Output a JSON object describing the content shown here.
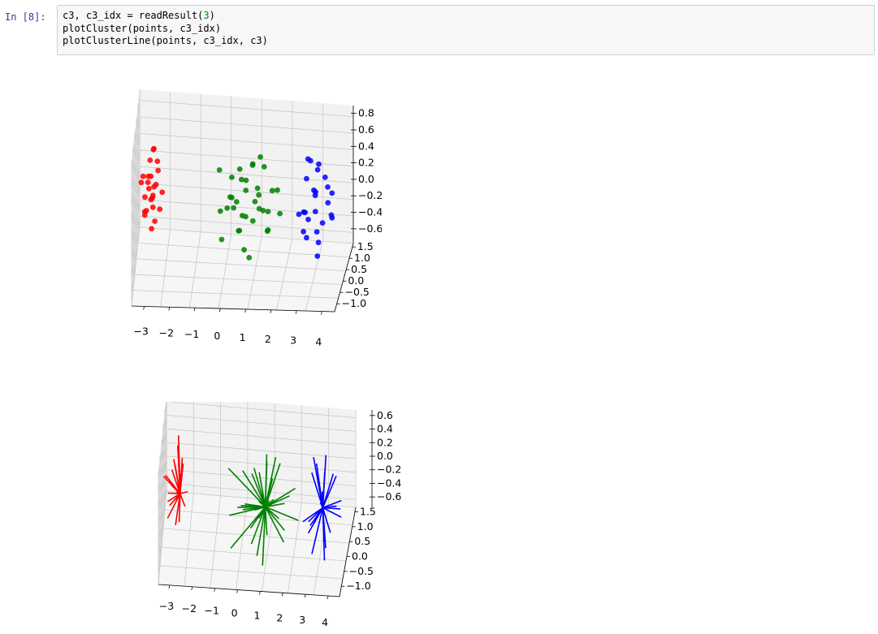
{
  "prompt": "In [8]:",
  "code_lines": [
    [
      "c3, c3_idx = readResult(",
      "3",
      ")"
    ],
    [
      "plotCluster(points, c3_idx)",
      "",
      ""
    ],
    [
      "plotClusterLine(points, c3_idx, c3)",
      "",
      ""
    ]
  ],
  "colors": {
    "cluster1": "#ff0000",
    "cluster2": "#008000",
    "cluster3": "#0000ff"
  },
  "chart_data": [
    {
      "type": "scatter",
      "projection": "3d",
      "x_ticks": [
        "−3",
        "−2",
        "−1",
        "0",
        "1",
        "2",
        "3",
        "4"
      ],
      "y_ticks": [
        "1.5",
        "1.0",
        "0.5",
        "0.0",
        "−0.5",
        "−1.0"
      ],
      "z_ticks": [
        "0.8",
        "0.6",
        "0.4",
        "0.2",
        "0.0",
        "−0.2",
        "−0.4",
        "−0.6"
      ],
      "series": [
        {
          "color": "red",
          "points": [
            [
              -3.1,
              0.5,
              0.05
            ],
            [
              -3.0,
              0.3,
              -0.1
            ],
            [
              -2.9,
              0.6,
              0.1
            ],
            [
              -3.2,
              0.4,
              -0.2
            ],
            [
              -2.8,
              0.2,
              0.15
            ],
            [
              -3.0,
              0.7,
              0.0
            ],
            [
              -3.3,
              0.1,
              -0.3
            ],
            [
              -2.9,
              0.0,
              -0.05
            ],
            [
              -3.1,
              0.8,
              0.2
            ],
            [
              -2.7,
              0.5,
              -0.15
            ],
            [
              -3.0,
              -0.2,
              0.25
            ],
            [
              -3.2,
              0.9,
              -0.1
            ],
            [
              -2.8,
              0.4,
              0.3
            ],
            [
              -3.4,
              0.3,
              0.05
            ],
            [
              -3.0,
              0.1,
              -0.25
            ],
            [
              -2.9,
              0.9,
              0.1
            ],
            [
              -3.1,
              -0.1,
              0.0
            ],
            [
              -2.6,
              0.6,
              0.05
            ],
            [
              -3.3,
              0.6,
              0.2
            ],
            [
              -3.0,
              0.5,
              -0.35
            ],
            [
              -2.95,
              0.35,
              0.4
            ],
            [
              -3.15,
              0.25,
              0.1
            ],
            [
              -2.85,
              0.75,
              -0.2
            ],
            [
              -3.05,
              0.55,
              0.35
            ],
            [
              -3.25,
              0.45,
              -0.05
            ]
          ]
        },
        {
          "color": "green",
          "points": [
            [
              0.2,
              1.0,
              0.1
            ],
            [
              0.5,
              0.8,
              -0.1
            ],
            [
              0.0,
              1.2,
              0.2
            ],
            [
              0.8,
              0.6,
              0.0
            ],
            [
              1.0,
              0.9,
              0.15
            ],
            [
              0.3,
              0.4,
              -0.2
            ],
            [
              0.6,
              1.3,
              0.3
            ],
            [
              -0.2,
              0.7,
              -0.05
            ],
            [
              1.2,
              1.1,
              0.05
            ],
            [
              0.9,
              0.3,
              -0.15
            ],
            [
              0.1,
              1.4,
              0.25
            ],
            [
              0.7,
              0.5,
              0.35
            ],
            [
              1.3,
              0.7,
              -0.25
            ],
            [
              -0.4,
              1.0,
              0.0
            ],
            [
              0.4,
              0.2,
              0.1
            ],
            [
              1.5,
              0.9,
              0.2
            ],
            [
              0.2,
              0.6,
              -0.3
            ],
            [
              0.9,
              1.5,
              0.05
            ],
            [
              1.1,
              0.4,
              0.3
            ],
            [
              -0.1,
              0.3,
              0.15
            ],
            [
              0.5,
              1.1,
              -0.35
            ],
            [
              1.4,
              1.3,
              -0.1
            ],
            [
              0.3,
              0.9,
              0.4
            ],
            [
              0.8,
              0.1,
              0.0
            ],
            [
              0.0,
              0.5,
              -0.1
            ],
            [
              1.6,
              0.5,
              0.1
            ],
            [
              0.6,
              0.0,
              0.2
            ],
            [
              1.2,
              0.2,
              -0.2
            ],
            [
              -0.5,
              0.6,
              0.3
            ],
            [
              0.4,
              1.5,
              -0.05
            ],
            [
              1.0,
              0.6,
              0.45
            ],
            [
              0.7,
              1.2,
              -0.4
            ],
            [
              1.8,
              1.0,
              0.0
            ],
            [
              0.2,
              0.0,
              0.05
            ],
            [
              -0.3,
              1.3,
              -0.2
            ]
          ]
        },
        {
          "color": "blue",
          "points": [
            [
              3.0,
              0.5,
              0.1
            ],
            [
              2.8,
              0.8,
              -0.1
            ],
            [
              3.3,
              0.3,
              0.2
            ],
            [
              2.5,
              1.0,
              0.0
            ],
            [
              3.1,
              1.2,
              0.3
            ],
            [
              2.9,
              0.1,
              -0.2
            ],
            [
              3.5,
              0.7,
              0.05
            ],
            [
              2.7,
              0.4,
              0.4
            ],
            [
              3.2,
              0.9,
              -0.3
            ],
            [
              2.6,
              0.2,
              0.15
            ],
            [
              3.4,
              1.1,
              -0.05
            ],
            [
              3.0,
              0.0,
              0.25
            ],
            [
              2.8,
              1.3,
              0.1
            ],
            [
              3.6,
              0.5,
              -0.15
            ],
            [
              3.1,
              0.6,
              0.35
            ],
            [
              2.9,
              1.5,
              -0.1
            ],
            [
              3.3,
              -0.1,
              0.0
            ],
            [
              2.6,
              0.7,
              -0.25
            ],
            [
              3.7,
              0.9,
              0.2
            ],
            [
              3.0,
              0.3,
              -0.35
            ],
            [
              3.2,
              1.4,
              0.3
            ],
            [
              2.7,
              1.1,
              0.05
            ],
            [
              3.5,
              0.2,
              -0.2
            ],
            [
              2.85,
              0.65,
              0.45
            ],
            [
              3.15,
              0.85,
              -0.45
            ]
          ]
        }
      ]
    },
    {
      "type": "line",
      "projection": "3d",
      "x_ticks": [
        "−3",
        "−2",
        "−1",
        "0",
        "1",
        "2",
        "3",
        "4"
      ],
      "y_ticks": [
        "1.5",
        "1.0",
        "0.5",
        "0.0",
        "−0.5",
        "−1.0"
      ],
      "z_ticks": [
        "0.6",
        "0.4",
        "0.2",
        "0.0",
        "−0.2",
        "−0.4",
        "−0.6"
      ],
      "series": [
        {
          "color": "red",
          "center": [
            -2.85,
            0.55,
            0.0
          ]
        },
        {
          "color": "green",
          "center": [
            0.7,
            0.75,
            0.0
          ]
        },
        {
          "color": "blue",
          "center": [
            3.05,
            0.65,
            0.0
          ]
        }
      ]
    }
  ]
}
